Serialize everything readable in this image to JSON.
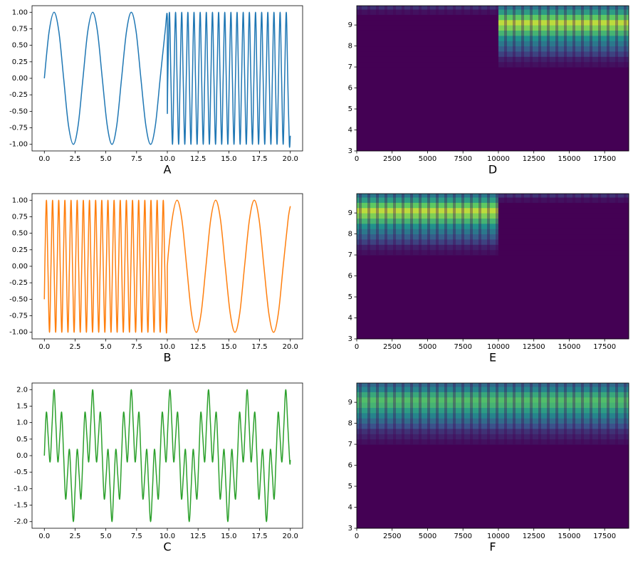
{
  "chart_data": [
    {
      "type": "line",
      "xlabel": "A",
      "color": "#1f77b4",
      "xlim": [
        -1,
        21
      ],
      "ylim": [
        -1.1,
        1.1
      ],
      "xticks": [
        {
          "value": 0,
          "label": "0.0"
        },
        2.5,
        {
          "value": 5,
          "label": "5.0"
        },
        7.5,
        {
          "value": 10,
          "label": "10.0"
        },
        12.5,
        {
          "value": 15,
          "label": "15.0"
        },
        17.5,
        {
          "value": 20,
          "label": "20.0"
        }
      ],
      "yticks": [
        {
          "value": -1,
          "label": "-1.00"
        },
        -0.75,
        {
          "value": -0.5,
          "label": "-0.50"
        },
        -0.25,
        {
          "value": 0,
          "label": "0.00"
        },
        0.25,
        {
          "value": 0.5,
          "label": "0.50"
        },
        0.75,
        {
          "value": 1,
          "label": "1.00"
        }
      ],
      "x": [
        0,
        0.39,
        0.79,
        1.18,
        1.57,
        1.96,
        2.36,
        2.75,
        3.14,
        3.53,
        3.93,
        4.32,
        4.71,
        5.11,
        5.5,
        5.89,
        6.28,
        6.68,
        7.07,
        7.46,
        7.85,
        8.25,
        8.64,
        9.03,
        9.42,
        9.82,
        10,
        10,
        10.04,
        10.17,
        10.29,
        10.42,
        10.54,
        10.67,
        10.79,
        10.92,
        11.04,
        11.17,
        11.29,
        11.42,
        11.54,
        11.67,
        11.79,
        11.92,
        12.04,
        12.17,
        12.29,
        12.42,
        12.54,
        12.67,
        12.79,
        12.92,
        13.04,
        13.17,
        13.29,
        13.42,
        13.54,
        13.67,
        13.79,
        13.92,
        14.04,
        14.17,
        14.29,
        14.42,
        14.54,
        14.67,
        14.79,
        14.92,
        15.04,
        15.17,
        15.29,
        15.42,
        15.54,
        15.67,
        15.79,
        15.92,
        16.04,
        16.17,
        16.29,
        16.42,
        16.54,
        16.67,
        16.79,
        16.92,
        17.04,
        17.17,
        17.29,
        17.42,
        17.54,
        17.67,
        17.79,
        17.92,
        18.04,
        18.17,
        18.29,
        18.42,
        18.54,
        18.67,
        18.79,
        18.92,
        19.04,
        19.17,
        19.29,
        19.42,
        19.54,
        19.67,
        19.79,
        19.92,
        20
      ],
      "values": [
        0,
        0.71,
        1,
        0.71,
        0,
        -0.71,
        -1,
        -0.71,
        0,
        0.71,
        1,
        0.71,
        0,
        -0.71,
        -1,
        -0.71,
        0,
        0.71,
        1,
        0.71,
        0,
        -0.71,
        -1,
        -0.71,
        0,
        0.71,
        0.91,
        -0.5,
        0,
        1,
        0,
        -1,
        0,
        1,
        0,
        -1,
        0,
        1,
        0,
        -1,
        0,
        1,
        0,
        -1,
        0,
        1,
        0,
        -1,
        0,
        1,
        0,
        -1,
        0,
        1,
        0,
        -1,
        0,
        1,
        0,
        -1,
        0,
        1,
        0,
        -1,
        0,
        1,
        0,
        -1,
        0,
        1,
        0,
        -1,
        0,
        1,
        0,
        -1,
        0,
        1,
        0,
        -1,
        0,
        1,
        0,
        -1,
        0,
        1,
        0,
        -1,
        0,
        1,
        0,
        -1,
        0,
        1,
        0,
        -1,
        0,
        1,
        0,
        -1,
        0,
        1,
        0,
        -1,
        0,
        1,
        0,
        -1,
        -0.87
      ]
    },
    {
      "type": "line",
      "xlabel": "B",
      "color": "#ff7f0e",
      "xlim": [
        -1,
        21
      ],
      "ylim": [
        -1.1,
        1.1
      ],
      "xticks": [
        {
          "value": 0,
          "label": "0.0"
        },
        2.5,
        {
          "value": 5,
          "label": "5.0"
        },
        7.5,
        {
          "value": 10,
          "label": "10.0"
        },
        12.5,
        {
          "value": 15,
          "label": "15.0"
        },
        17.5,
        {
          "value": 20,
          "label": "20.0"
        }
      ],
      "yticks": [
        {
          "value": -1,
          "label": "-1.00"
        },
        -0.75,
        {
          "value": -0.5,
          "label": "-0.50"
        },
        -0.25,
        {
          "value": 0,
          "label": "0.00"
        },
        0.25,
        {
          "value": 0.5,
          "label": "0.50"
        },
        0.75,
        {
          "value": 1,
          "label": "1.00"
        }
      ],
      "x": [
        0,
        0.04,
        0.17,
        0.29,
        0.42,
        0.54,
        0.67,
        0.79,
        0.92,
        1.04,
        1.17,
        1.29,
        1.42,
        1.54,
        1.67,
        1.79,
        1.92,
        2.04,
        2.17,
        2.29,
        2.42,
        2.54,
        2.67,
        2.79,
        2.92,
        3.04,
        3.17,
        3.29,
        3.42,
        3.54,
        3.67,
        3.79,
        3.92,
        4.04,
        4.17,
        4.29,
        4.42,
        4.54,
        4.67,
        4.79,
        4.92,
        5.04,
        5.17,
        5.29,
        5.42,
        5.54,
        5.67,
        5.79,
        5.92,
        6.04,
        6.17,
        6.29,
        6.42,
        6.54,
        6.67,
        6.79,
        6.92,
        7.04,
        7.17,
        7.29,
        7.42,
        7.54,
        7.67,
        7.79,
        7.92,
        8.04,
        8.17,
        8.29,
        8.42,
        8.54,
        8.67,
        8.79,
        8.92,
        9.04,
        9.17,
        9.29,
        9.42,
        9.54,
        9.67,
        9.79,
        9.92,
        10,
        10,
        10.39,
        10.79,
        11.18,
        11.57,
        11.96,
        12.36,
        12.75,
        13.14,
        13.53,
        13.93,
        14.32,
        14.71,
        15.11,
        15.5,
        15.89,
        16.28,
        16.68,
        17.07,
        17.46,
        17.85,
        18.25,
        18.64,
        19.03,
        19.42,
        19.82,
        20
      ],
      "values": [
        -0.5,
        0,
        1,
        0,
        -1,
        0,
        1,
        0,
        -1,
        0,
        1,
        0,
        -1,
        0,
        1,
        0,
        -1,
        0,
        1,
        0,
        -1,
        0,
        1,
        0,
        -1,
        0,
        1,
        0,
        -1,
        0,
        1,
        0,
        -1,
        0,
        1,
        0,
        -1,
        0,
        1,
        0,
        -1,
        0,
        1,
        0,
        -1,
        0,
        1,
        0,
        -1,
        0,
        1,
        0,
        -1,
        0,
        1,
        0,
        -1,
        0,
        1,
        0,
        -1,
        0,
        1,
        0,
        -1,
        0,
        1,
        0,
        -1,
        0,
        1,
        0,
        -1,
        0,
        1,
        0,
        -1,
        0,
        1,
        0,
        -1,
        -0.5,
        0,
        0.71,
        1,
        0.71,
        0,
        -0.71,
        -1,
        -0.71,
        0,
        0.71,
        1,
        0.71,
        0,
        -0.71,
        -1,
        -0.71,
        0,
        0.71,
        1,
        0.71,
        0,
        -0.71,
        -1,
        -0.71,
        0,
        0.71,
        0.91
      ]
    },
    {
      "type": "line",
      "xlabel": "C",
      "color": "#2ca02c",
      "xlim": [
        -1,
        21
      ],
      "ylim": [
        -2.2,
        2.2
      ],
      "xticks": [
        {
          "value": 0,
          "label": "0.0"
        },
        2.5,
        {
          "value": 5,
          "label": "5.0"
        },
        7.5,
        {
          "value": 10,
          "label": "10.0"
        },
        12.5,
        {
          "value": 15,
          "label": "15.0"
        },
        17.5,
        {
          "value": 20,
          "label": "20.0"
        }
      ],
      "yticks": [
        {
          "value": -2,
          "label": "-2.0"
        },
        -1.5,
        {
          "value": -1,
          "label": "-1.0"
        },
        -0.5,
        {
          "value": 0,
          "label": "0.0"
        },
        0.5,
        {
          "value": 1,
          "label": "1.0"
        },
        1.5,
        {
          "value": 2,
          "label": "2.0"
        }
      ],
      "x": [
        0,
        0.16,
        0.31,
        0.47,
        0.63,
        0.79,
        0.94,
        1.1,
        1.26,
        1.41,
        1.57,
        1.73,
        1.88,
        2.04,
        2.2,
        2.36,
        2.51,
        2.67,
        2.83,
        2.98,
        3.14,
        3.3,
        3.46,
        3.61,
        3.77,
        3.93,
        4.08,
        4.24,
        4.4,
        4.56,
        4.71,
        4.87,
        5.03,
        5.18,
        5.34,
        5.5,
        5.65,
        5.81,
        5.97,
        6.13,
        6.28,
        6.44,
        6.6,
        6.75,
        6.91,
        7.07,
        7.23,
        7.38,
        7.54,
        7.7,
        7.85,
        8.01,
        8.17,
        8.33,
        8.48,
        8.64,
        8.8,
        8.95,
        9.11,
        9.27,
        9.42,
        9.58,
        9.74,
        9.9,
        10.05,
        10.21,
        10.37,
        10.52,
        10.68,
        10.84,
        11,
        11.15,
        11.31,
        11.47,
        11.62,
        11.78,
        11.94,
        12.1,
        12.25,
        12.41,
        12.57,
        12.72,
        12.88,
        13.04,
        13.19,
        13.35,
        13.51,
        13.67,
        13.82,
        13.98,
        14.14,
        14.29,
        14.45,
        14.61,
        14.77,
        14.92,
        15.08,
        15.24,
        15.39,
        15.55,
        15.71,
        15.87,
        16.02,
        16.18,
        16.34,
        16.49,
        16.65,
        16.81,
        16.96,
        17.12,
        17.28,
        17.44,
        17.59,
        17.75,
        17.91,
        18.06,
        18.22,
        18.38,
        18.54,
        18.69,
        18.85,
        19.01,
        19.16,
        19.32,
        19.48,
        19.63,
        19.79,
        19.95,
        20
      ],
      "values": [
        0,
        1.31,
        0.59,
        -0.19,
        0.95,
        2,
        0.95,
        -0.19,
        0.59,
        1.31,
        0,
        -1.31,
        -0.59,
        0.19,
        -0.95,
        -2,
        -0.95,
        0.19,
        -0.59,
        -1.31,
        0,
        1.31,
        0.59,
        -0.19,
        0.95,
        2,
        0.95,
        -0.19,
        0.59,
        1.31,
        0,
        -1.31,
        -0.59,
        0.19,
        -0.95,
        -2,
        -0.95,
        0.19,
        -0.59,
        -1.31,
        0,
        1.31,
        0.59,
        -0.19,
        0.95,
        2,
        0.95,
        -0.19,
        0.59,
        1.31,
        0,
        -1.31,
        -0.59,
        0.19,
        -0.95,
        -2,
        -0.95,
        0.19,
        -0.59,
        -1.31,
        0,
        1.31,
        0.59,
        -0.19,
        0.95,
        2,
        0.95,
        -0.19,
        0.59,
        1.31,
        0,
        -1.31,
        -0.59,
        0.19,
        -0.95,
        -2,
        -0.95,
        0.19,
        -0.59,
        -1.31,
        0,
        1.31,
        0.59,
        -0.19,
        0.95,
        2,
        0.95,
        -0.19,
        0.59,
        1.31,
        0,
        -1.31,
        -0.59,
        0.19,
        -0.95,
        -2,
        -0.95,
        0.19,
        -0.59,
        -1.31,
        0,
        1.31,
        0.59,
        -0.19,
        0.95,
        2,
        0.95,
        -0.19,
        0.59,
        1.31,
        0,
        -1.31,
        -0.59,
        0.19,
        -0.95,
        -2,
        -0.95,
        0.19,
        -0.59,
        -1.31,
        0,
        1.31,
        0.59,
        -0.19,
        0.95,
        2,
        0.95,
        -0.19,
        -0.13
      ]
    },
    {
      "type": "heatmap",
      "xlabel": "D",
      "colormap": "viridis",
      "xlim": [
        0,
        19200
      ],
      "ylim": [
        3,
        9.92
      ],
      "xticks": [
        0,
        2500,
        5000,
        7500,
        10000,
        12500,
        15000,
        17500
      ],
      "yticks": [
        3,
        4,
        5,
        6,
        7,
        8,
        9
      ],
      "x_edges": [
        0,
        10000,
        19200
      ],
      "y_edges": [
        3,
        7,
        7.25,
        7.5,
        7.75,
        8,
        8.25,
        8.5,
        8.75,
        9,
        9.25,
        9.5,
        9.75,
        9.92
      ],
      "z": [
        [
          0,
          0
        ],
        [
          0,
          0.05
        ],
        [
          0,
          0.1
        ],
        [
          0,
          0.2
        ],
        [
          0,
          0.3
        ],
        [
          0,
          0.4
        ],
        [
          0,
          0.5
        ],
        [
          0,
          0.65
        ],
        [
          0,
          0.8
        ],
        [
          0,
          0.9
        ],
        [
          0,
          0.75
        ],
        [
          0.05,
          0.55
        ],
        [
          0.15,
          0.4
        ]
      ]
    },
    {
      "type": "heatmap",
      "xlabel": "E",
      "colormap": "viridis",
      "xlim": [
        0,
        19200
      ],
      "ylim": [
        3,
        9.92
      ],
      "xticks": [
        0,
        2500,
        5000,
        7500,
        10000,
        12500,
        15000,
        17500
      ],
      "yticks": [
        3,
        4,
        5,
        6,
        7,
        8,
        9
      ],
      "x_edges": [
        0,
        10000,
        19200
      ],
      "y_edges": [
        3,
        7,
        7.25,
        7.5,
        7.75,
        8,
        8.25,
        8.5,
        8.75,
        9,
        9.25,
        9.5,
        9.75,
        9.92
      ],
      "z": [
        [
          0,
          0
        ],
        [
          0.05,
          0
        ],
        [
          0.1,
          0
        ],
        [
          0.2,
          0
        ],
        [
          0.3,
          0
        ],
        [
          0.4,
          0
        ],
        [
          0.5,
          0
        ],
        [
          0.65,
          0
        ],
        [
          0.8,
          0
        ],
        [
          0.9,
          0
        ],
        [
          0.75,
          0
        ],
        [
          0.55,
          0.05
        ],
        [
          0.4,
          0.15
        ]
      ]
    },
    {
      "type": "heatmap",
      "xlabel": "F",
      "colormap": "viridis",
      "xlim": [
        0,
        19200
      ],
      "ylim": [
        3,
        9.92
      ],
      "xticks": [
        0,
        2500,
        5000,
        7500,
        10000,
        12500,
        15000,
        17500
      ],
      "yticks": [
        3,
        4,
        5,
        6,
        7,
        8,
        9
      ],
      "x_edges": [
        0,
        19200
      ],
      "y_edges": [
        3,
        7,
        7.25,
        7.5,
        7.75,
        8,
        8.25,
        8.5,
        8.75,
        9,
        9.25,
        9.5,
        9.75,
        9.92
      ],
      "z": [
        [
          0
        ],
        [
          0.05
        ],
        [
          0.1
        ],
        [
          0.15
        ],
        [
          0.25
        ],
        [
          0.35
        ],
        [
          0.45
        ],
        [
          0.55
        ],
        [
          0.65
        ],
        [
          0.7
        ],
        [
          0.6
        ],
        [
          0.45
        ],
        [
          0.35
        ]
      ]
    }
  ]
}
